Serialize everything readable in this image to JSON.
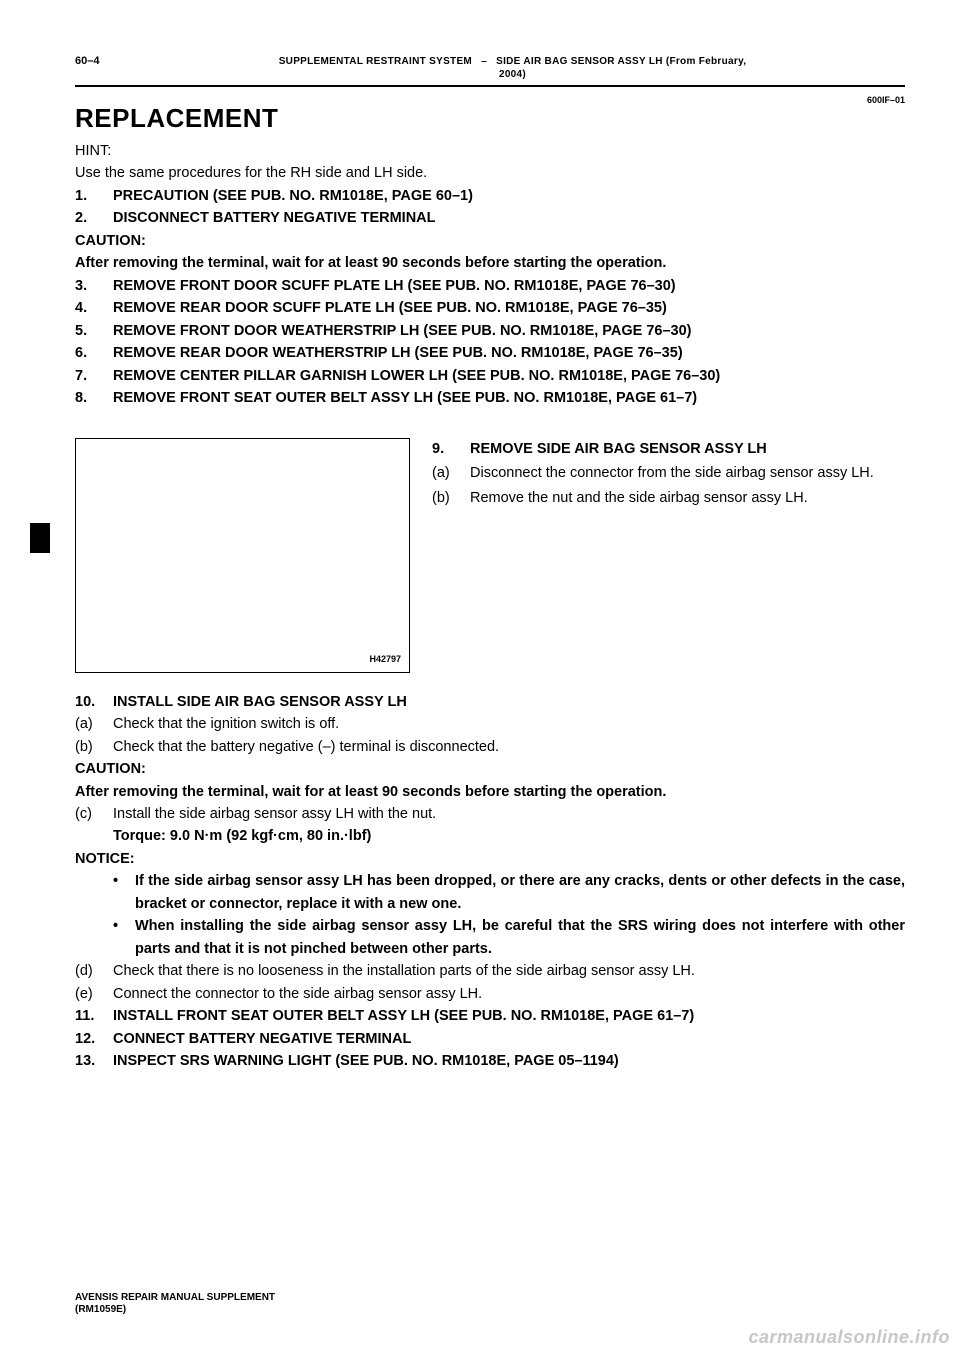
{
  "header": {
    "page_num": "60–4",
    "title_left": "SUPPLEMENTAL RESTRAINT SYSTEM",
    "dash": "–",
    "title_right_line1": "SIDE AIR BAG SENSOR ASSY LH (From February,",
    "title_right_line2": "2004)"
  },
  "code": "600IF–01",
  "section_title": "REPLACEMENT",
  "hint_label": "HINT:",
  "hint_text": "Use the same procedures for the RH side and LH side.",
  "steps_top": [
    {
      "n": "1.",
      "t": "PRECAUTION (SEE PUB. NO. RM1018E, PAGE 60–1)"
    },
    {
      "n": "2.",
      "t": "DISCONNECT BATTERY NEGATIVE TERMINAL"
    }
  ],
  "caution1_label": "CAUTION:",
  "caution1_text": "After removing the terminal, wait for at least 90 seconds before starting the operation.",
  "steps_mid": [
    {
      "n": "3.",
      "t": "REMOVE FRONT DOOR SCUFF PLATE LH (SEE PUB. NO. RM1018E, PAGE 76–30)"
    },
    {
      "n": "4.",
      "t": "REMOVE REAR DOOR SCUFF PLATE LH (SEE PUB. NO. RM1018E, PAGE 76–35)"
    },
    {
      "n": "5.",
      "t": "REMOVE FRONT DOOR WEATHERSTRIP LH (SEE PUB. NO. RM1018E, PAGE 76–30)"
    },
    {
      "n": "6.",
      "t": "REMOVE REAR DOOR WEATHERSTRIP LH (SEE PUB. NO. RM1018E, PAGE 76–35)"
    },
    {
      "n": "7.",
      "t": "REMOVE CENTER PILLAR GARNISH LOWER LH (SEE PUB. NO. RM1018E, PAGE 76–30)"
    },
    {
      "n": "8.",
      "t": "REMOVE FRONT SEAT OUTER BELT ASSY LH (SEE PUB. NO. RM1018E, PAGE 61–7)"
    }
  ],
  "figure": {
    "caption": "H42797",
    "step9": {
      "n": "9.",
      "t": "REMOVE SIDE AIR BAG SENSOR ASSY LH"
    },
    "sub_a": {
      "n": "(a)",
      "t": "Disconnect the connector from the side airbag sensor assy LH."
    },
    "sub_b": {
      "n": "(b)",
      "t": "Remove the nut and the side airbag sensor assy LH."
    }
  },
  "step10": {
    "n": "10.",
    "t": "INSTALL SIDE AIR BAG SENSOR ASSY LH"
  },
  "sub10a": {
    "n": "(a)",
    "t": "Check that the ignition switch is off."
  },
  "sub10b": {
    "n": "(b)",
    "t": "Check that the battery negative (–) terminal is disconnected."
  },
  "caution2_label": "CAUTION:",
  "caution2_text": "After removing the terminal, wait for at least 90 seconds before starting the operation.",
  "sub10c": {
    "n": "(c)",
    "t": "Install the side airbag sensor assy LH with the nut."
  },
  "torque": "Torque: 9.0 N·m (92 kgf·cm, 80 in.·lbf)",
  "notice_label": "NOTICE:",
  "notice_bullets": [
    "If the side airbag sensor assy LH has been dropped, or there are any cracks, dents or other defects in the case, bracket or connector, replace it with a new one.",
    "When installing the side airbag sensor assy LH, be careful that the SRS wiring does not interfere with other parts and that it is not pinched between other parts."
  ],
  "sub10d": {
    "n": "(d)",
    "t": "Check that there is no looseness in the installation parts of the side airbag sensor assy LH."
  },
  "sub10e": {
    "n": "(e)",
    "t": "Connect the connector to the side airbag sensor assy LH."
  },
  "steps_bottom": [
    {
      "n": "11.",
      "t": "INSTALL FRONT SEAT OUTER BELT ASSY LH (SEE PUB. NO. RM1018E, PAGE 61–7)"
    },
    {
      "n": "12.",
      "t": "CONNECT BATTERY NEGATIVE TERMINAL"
    },
    {
      "n": "13.",
      "t": "INSPECT SRS WARNING LIGHT (SEE PUB. NO. RM1018E, PAGE 05–1194)"
    }
  ],
  "footer_line1": "AVENSIS REPAIR MANUAL SUPPLEMENT",
  "footer_line2": "(RM1059E)",
  "watermark": "carmanualsonline.info",
  "colors": {
    "text": "#000000",
    "background": "#ffffff",
    "watermark": "#c7c7c7"
  }
}
